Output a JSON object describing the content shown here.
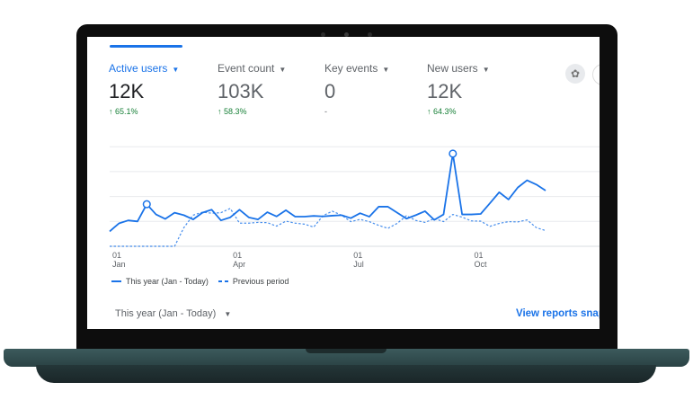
{
  "metrics": [
    {
      "label": "Active users",
      "value": "12K",
      "delta": "65.1%",
      "up": true
    },
    {
      "label": "Event count",
      "value": "103K",
      "delta": "58.3%",
      "up": true
    },
    {
      "label": "Key events",
      "value": "0",
      "delta": "-",
      "up": false
    },
    {
      "label": "New users",
      "value": "12K",
      "delta": "64.3%",
      "up": true
    }
  ],
  "icons": {
    "metric_caret": "▼",
    "delta_up": "↑",
    "insights": "insights-icon"
  },
  "chart_data": {
    "type": "line",
    "title": "",
    "xlabel": "",
    "ylabel": "",
    "x_ticks": [
      {
        "index": 0,
        "day": "01",
        "month": "Jan"
      },
      {
        "index": 13,
        "day": "01",
        "month": "Apr"
      },
      {
        "index": 26,
        "day": "01",
        "month": "Jul"
      },
      {
        "index": 39,
        "day": "01",
        "month": "Oct"
      }
    ],
    "ylim": [
      0,
      4
    ],
    "gridlines": 4,
    "series": [
      {
        "name": "This year (Jan - Today)",
        "style": "solid",
        "color": "#1a73e8",
        "markers": [
          4,
          37
        ],
        "values": [
          0.6,
          0.92,
          1.04,
          1.0,
          1.69,
          1.28,
          1.1,
          1.35,
          1.25,
          1.08,
          1.35,
          1.47,
          1.04,
          1.16,
          1.47,
          1.16,
          1.08,
          1.37,
          1.2,
          1.45,
          1.19,
          1.19,
          1.22,
          1.2,
          1.23,
          1.25,
          1.13,
          1.33,
          1.19,
          1.59,
          1.59,
          1.35,
          1.11,
          1.25,
          1.41,
          1.06,
          1.28,
          3.72,
          1.28,
          1.28,
          1.3,
          1.73,
          2.17,
          1.88,
          2.36,
          2.65,
          2.48,
          2.24
        ]
      },
      {
        "name": "Previous period",
        "style": "dashed",
        "color": "#1a73e8",
        "values": [
          0,
          0,
          0,
          0,
          0,
          0,
          0,
          0,
          0.75,
          1.25,
          1.37,
          1.33,
          1.35,
          1.52,
          0.93,
          0.93,
          0.96,
          0.95,
          0.81,
          1.01,
          0.93,
          0.89,
          0.77,
          1.23,
          1.41,
          1.25,
          0.99,
          1.08,
          0.99,
          0.84,
          0.72,
          0.92,
          1.23,
          1.04,
          0.96,
          1.11,
          0.99,
          1.28,
          1.17,
          1.02,
          1.01,
          0.8,
          0.92,
          0.99,
          0.98,
          1.06,
          0.75,
          0.63
        ]
      }
    ],
    "legend": "bottom-left"
  },
  "footer": {
    "range_label": "This year (Jan - Today)",
    "range_caret": "▼",
    "link": "View reports snapshot"
  }
}
